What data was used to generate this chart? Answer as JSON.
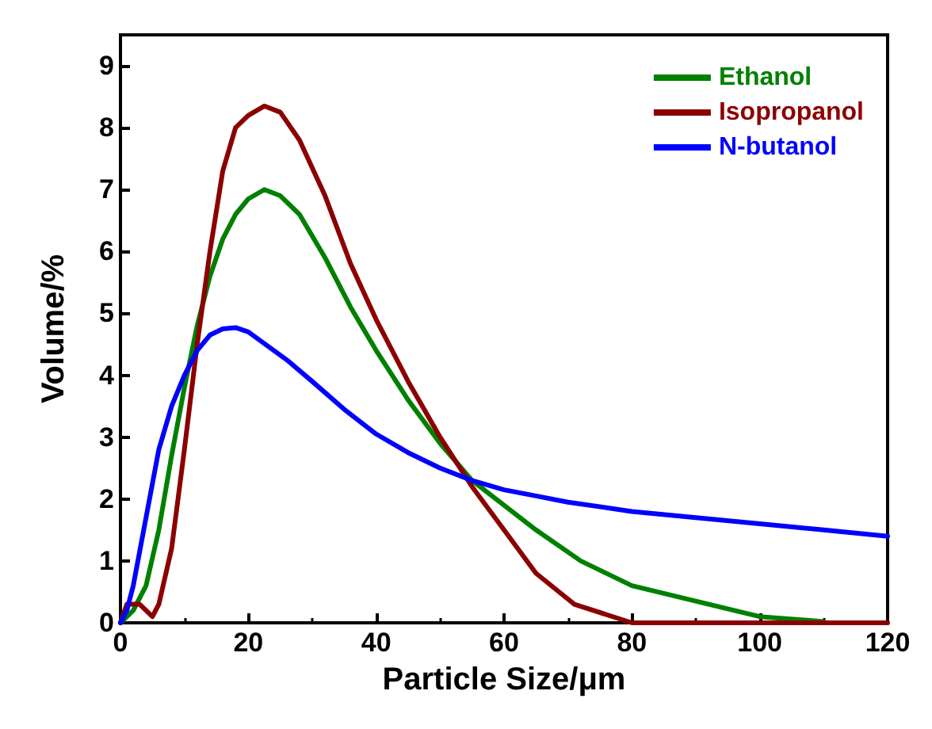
{
  "chart_data": {
    "type": "line",
    "xlabel": "Particle Size/μm",
    "ylabel": "Volume/%",
    "xlim": [
      0,
      120
    ],
    "xticks": [
      0,
      20,
      40,
      60,
      80,
      100,
      120
    ],
    "ylim": [
      0,
      9.5
    ],
    "yticks": [
      0,
      1,
      2,
      3,
      4,
      5,
      6,
      7,
      8,
      9
    ],
    "grid": false,
    "legend": "top right",
    "marker": "none",
    "line_style": "solid",
    "series": [
      {
        "name": "Ethanol",
        "color": "#008000",
        "x": [
          0,
          2,
          4,
          6,
          8,
          10,
          12,
          14,
          16,
          18,
          20,
          22.5,
          25,
          28,
          32,
          36,
          40,
          45,
          50,
          55,
          60,
          65,
          72,
          80,
          90,
          100,
          110
        ],
        "values": [
          0,
          0.2,
          0.6,
          1.5,
          2.7,
          3.8,
          4.8,
          5.6,
          6.2,
          6.6,
          6.85,
          7.0,
          6.9,
          6.6,
          5.9,
          5.1,
          4.4,
          3.6,
          2.9,
          2.3,
          1.9,
          1.5,
          1.0,
          0.6,
          0.35,
          0.1,
          0.02
        ]
      },
      {
        "name": "Isopropanol",
        "color": "#8b0000",
        "x": [
          0,
          1,
          3,
          5,
          6,
          8,
          10,
          12,
          14,
          16,
          18,
          20,
          22.5,
          25,
          28,
          32,
          36,
          40,
          45,
          50,
          55,
          60,
          65,
          71,
          80,
          120
        ],
        "values": [
          0,
          0.3,
          0.3,
          0.1,
          0.3,
          1.2,
          2.8,
          4.5,
          6,
          7.3,
          8,
          8.2,
          8.35,
          8.25,
          7.8,
          6.9,
          5.8,
          4.9,
          3.9,
          3.0,
          2.2,
          1.5,
          0.8,
          0.3,
          0,
          0
        ]
      },
      {
        "name": "N-butanol",
        "color": "#0000ff",
        "x": [
          0,
          1,
          2,
          4,
          6,
          8,
          10,
          12,
          14,
          16,
          18,
          20,
          22,
          26,
          30,
          35,
          40,
          45,
          50,
          55,
          60,
          65,
          70,
          80,
          90,
          100,
          110,
          120
        ],
        "values": [
          0,
          0.2,
          0.6,
          1.7,
          2.8,
          3.5,
          4.0,
          4.4,
          4.65,
          4.75,
          4.77,
          4.7,
          4.55,
          4.25,
          3.9,
          3.45,
          3.05,
          2.75,
          2.5,
          2.3,
          2.15,
          2.05,
          1.95,
          1.8,
          1.7,
          1.6,
          1.5,
          1.4
        ]
      }
    ]
  }
}
